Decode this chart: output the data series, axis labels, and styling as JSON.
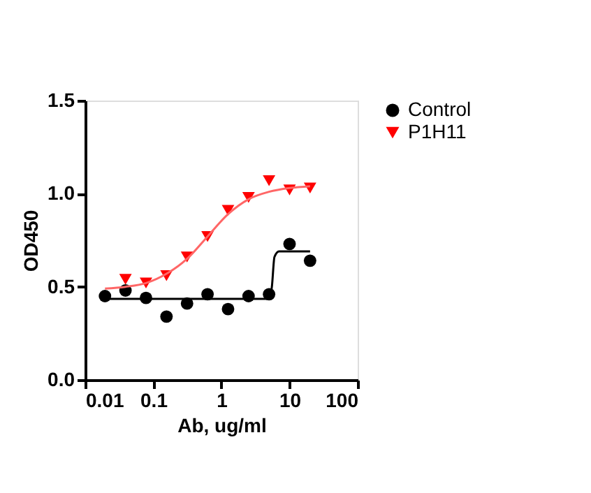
{
  "chart_data": {
    "type": "scatter",
    "xlabel": "Ab, ug/ml",
    "ylabel": "OD450",
    "log": "x",
    "grid": false,
    "legend": "right",
    "xlim": [
      0.01,
      100
    ],
    "xticks": [
      0.01,
      0.1,
      1,
      10,
      100
    ],
    "ylim": [
      0,
      1.5
    ],
    "yticks": [
      {
        "value": 0,
        "label": "0.0"
      },
      {
        "value": 0.5,
        "label": "0.5"
      },
      {
        "value": 1,
        "label": "1.0"
      },
      {
        "value": 1.5,
        "label": "1.5"
      }
    ],
    "series": [
      {
        "name": "Control",
        "marker": "circle",
        "color": "#000000",
        "x": [
          0.0195,
          0.039,
          0.078,
          0.156,
          0.3125,
          0.625,
          1.25,
          2.5,
          5,
          10,
          20
        ],
        "values": [
          0.45,
          0.48,
          0.44,
          0.34,
          0.41,
          0.46,
          0.38,
          0.45,
          0.46,
          0.73,
          0.64
        ]
      },
      {
        "name": "P1H11",
        "marker": "triangle",
        "color": "#ff0000",
        "x": [
          0.039,
          0.078,
          0.156,
          0.3125,
          0.625,
          1.25,
          2.5,
          5,
          10,
          20
        ],
        "values": [
          0.54,
          0.52,
          0.56,
          0.66,
          0.77,
          0.91,
          0.98,
          1.07,
          1.02,
          1.03
        ]
      },
      {
        "type": "line",
        "marker": "none",
        "color": "#000000",
        "x": [
          0.0195,
          5,
          5.5,
          6,
          7,
          20
        ],
        "values": [
          0.435,
          0.435,
          0.5,
          0.66,
          0.69,
          0.69
        ]
      },
      {
        "type": "line",
        "marker": "none",
        "color": "#ff6666",
        "x": [
          0.0195,
          0.039,
          0.078,
          0.156,
          0.3125,
          0.625,
          1.25,
          2.5,
          5,
          10,
          20
        ],
        "values": [
          0.49,
          0.5,
          0.52,
          0.57,
          0.65,
          0.77,
          0.89,
          0.97,
          1.01,
          1.03,
          1.04
        ]
      }
    ]
  }
}
